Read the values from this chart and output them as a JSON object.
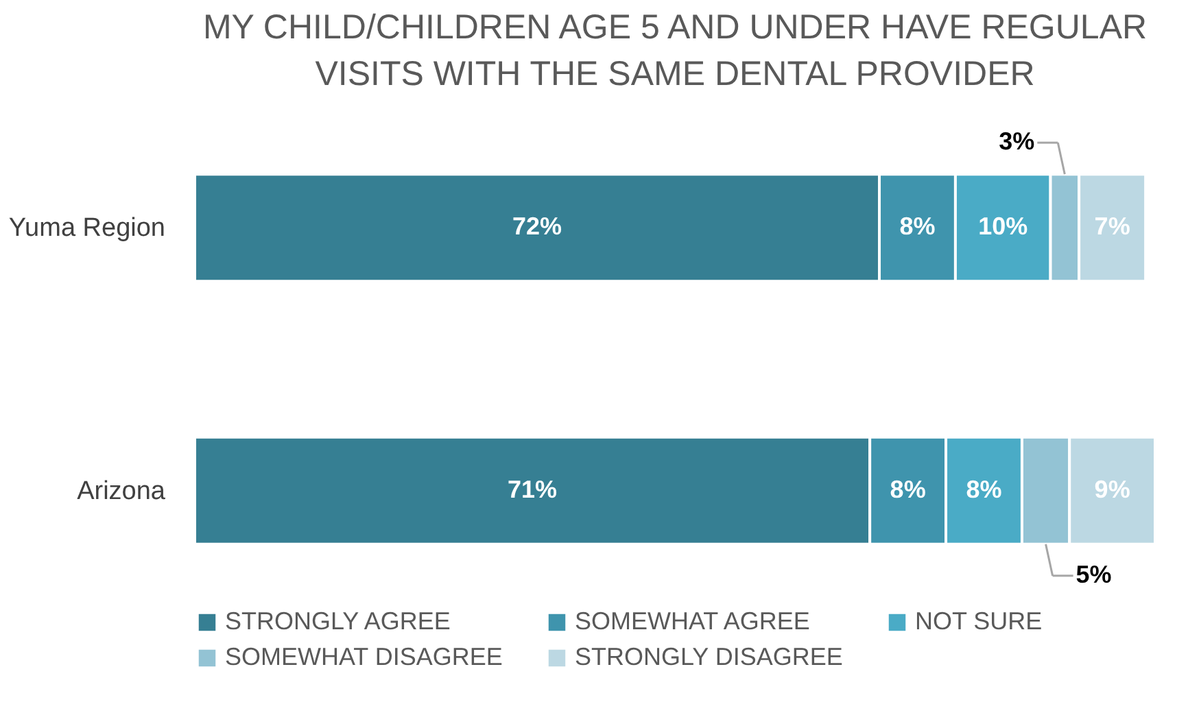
{
  "chart_data": {
    "type": "bar",
    "orientation": "horizontal",
    "stacked": true,
    "title": [
      "MY CHILD/CHILDREN AGE 5 AND UNDER HAVE REGULAR",
      "VISITS WITH THE SAME DENTAL PROVIDER"
    ],
    "categories": [
      "Yuma Region",
      "Arizona"
    ],
    "series": [
      {
        "name": "STRONGLY AGREE",
        "color": "#367f93",
        "values": [
          72,
          71
        ],
        "value_labels": [
          "72%",
          "71%"
        ]
      },
      {
        "name": "SOMEWHAT AGREE",
        "color": "#3f94ad",
        "values": [
          8,
          8
        ],
        "value_labels": [
          "8%",
          "8%"
        ]
      },
      {
        "name": "NOT SURE",
        "color": "#4aabc6",
        "values": [
          10,
          8
        ],
        "value_labels": [
          "10%",
          "8%"
        ]
      },
      {
        "name": "SOMEWHAT DISAGREE",
        "color": "#93c3d4",
        "values": [
          3,
          5
        ],
        "value_labels": [
          "3%",
          "5%"
        ]
      },
      {
        "name": "STRONGLY DISAGREE",
        "color": "#bcd8e3",
        "values": [
          7,
          9
        ],
        "value_labels": [
          "7%",
          "9%"
        ]
      }
    ],
    "legend": "bottom",
    "tick_labels": "y"
  }
}
